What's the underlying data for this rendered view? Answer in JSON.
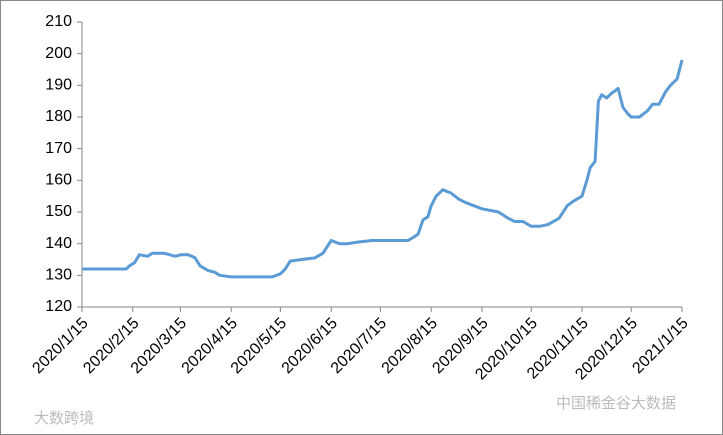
{
  "chart_data": {
    "type": "line",
    "x": [
      "2020/1/15",
      "2020/2/11",
      "2020/2/13",
      "2020/2/16",
      "2020/2/19",
      "2020/2/24",
      "2020/2/27",
      "2020/3/5",
      "2020/3/12",
      "2020/3/15",
      "2020/3/20",
      "2020/3/24",
      "2020/3/27",
      "2020/4/1",
      "2020/4/5",
      "2020/4/8",
      "2020/4/15",
      "2020/5/10",
      "2020/5/15",
      "2020/5/18",
      "2020/5/21",
      "2020/5/28",
      "2020/6/5",
      "2020/6/10",
      "2020/6/15",
      "2020/6/20",
      "2020/6/25",
      "2020/7/1",
      "2020/7/10",
      "2020/7/15",
      "2020/7/25",
      "2020/8/1",
      "2020/8/7",
      "2020/8/10",
      "2020/8/13",
      "2020/8/15",
      "2020/8/18",
      "2020/8/22",
      "2020/8/27",
      "2020/9/1",
      "2020/9/5",
      "2020/9/10",
      "2020/9/15",
      "2020/9/20",
      "2020/9/25",
      "2020/10/1",
      "2020/10/5",
      "2020/10/10",
      "2020/10/15",
      "2020/10/20",
      "2020/10/25",
      "2020/11/1",
      "2020/11/6",
      "2020/11/10",
      "2020/11/15",
      "2020/11/18",
      "2020/11/20",
      "2020/11/23",
      "2020/11/25",
      "2020/11/27",
      "2020/11/30",
      "2020/12/3",
      "2020/12/7",
      "2020/12/10",
      "2020/12/13",
      "2020/12/15",
      "2020/12/20",
      "2020/12/25",
      "2020/12/28",
      "2021/1/1",
      "2021/1/5",
      "2021/1/8",
      "2021/1/12",
      "2021/1/15"
    ],
    "series": [
      {
        "color": "#5b9bd5",
        "values": [
          132,
          132,
          133,
          134,
          136.5,
          136,
          137,
          137,
          136,
          136.5,
          136.5,
          135.5,
          133,
          131.5,
          131,
          130,
          129.5,
          129.5,
          130.5,
          132,
          134.5,
          135,
          135.5,
          137,
          141,
          140,
          140,
          140.5,
          141,
          141,
          141,
          141,
          143,
          147.5,
          148.5,
          152,
          155,
          157,
          156,
          154,
          153,
          152,
          151,
          150.5,
          150,
          148,
          147,
          147,
          145.5,
          145.5,
          146,
          148,
          152,
          153.5,
          155,
          160,
          164,
          166,
          185,
          187,
          186,
          187.5,
          189,
          183,
          181,
          180,
          180,
          182,
          184,
          184,
          188,
          190,
          192,
          198
        ]
      }
    ],
    "ylim": [
      120,
      210
    ],
    "yticks": [
      120,
      130,
      140,
      150,
      160,
      170,
      180,
      190,
      200,
      210
    ],
    "xlim": [
      "2020/1/15",
      "2021/1/15"
    ],
    "xticks": [
      "2020/1/15",
      "2020/2/15",
      "2020/3/15",
      "2020/4/15",
      "2020/5/15",
      "2020/6/15",
      "2020/7/15",
      "2020/8/15",
      "2020/9/15",
      "2020/10/15",
      "2020/11/15",
      "2020/12/15",
      "2021/1/15"
    ]
  },
  "watermarks": [
    "大数跨境",
    "中国稀金谷大数据"
  ]
}
